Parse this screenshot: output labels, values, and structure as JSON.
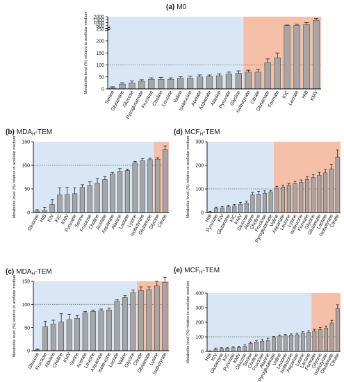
{
  "style": {
    "consumed_bg": "#d8e6f5",
    "secreted_bg": "#f6bfa7",
    "bar_fill": "#a6a6a6",
    "bar_stroke": "#333333",
    "error_color": "#222222",
    "reference_line": "#666666"
  },
  "chart_data": [
    {
      "id": "a",
      "type": "bar",
      "panel_label": "(a)",
      "title": "M0",
      "ylabel": "Metabolite level (%) relative to acellular medium",
      "yticks": [
        "0",
        "50",
        "100",
        "150",
        "200",
        "250",
        "500",
        "1000",
        "1500",
        "2000"
      ],
      "axis_break": {
        "lower_max": 250,
        "upper_min": 400
      },
      "ylim": [
        0,
        2000
      ],
      "grid": false,
      "reference_value": 100,
      "n_consumed": 14,
      "categories": [
        "Serine",
        "Glutamine",
        "Glucose",
        "Pyroglutamate",
        "Fructose",
        "Choline",
        "Leucine",
        "Valine",
        "Isoleucine",
        "Acetate",
        "Aspartate",
        "Alanine",
        "Pyruvate",
        "Glycine",
        "Isobutyrate",
        "Citrate",
        "Glutamate",
        "Formate",
        "KIC",
        "Lactate",
        "HIB",
        "KMV"
      ],
      "values": [
        5,
        20,
        25,
        32,
        40,
        40,
        40,
        45,
        45,
        50,
        52,
        55,
        62,
        65,
        70,
        70,
        110,
        130,
        500,
        560,
        700,
        1400
      ],
      "errors": [
        4,
        6,
        8,
        6,
        6,
        8,
        6,
        6,
        8,
        8,
        6,
        8,
        8,
        10,
        8,
        12,
        15,
        20,
        100,
        150,
        300,
        320
      ]
    },
    {
      "id": "b",
      "type": "bar",
      "panel_label": "(b)",
      "title": "MDA",
      "title_sub": "H",
      "title_suffix": "-TEM",
      "ylabel": "Metabolite level (%) relative to acellular medium",
      "yticks": [
        "0",
        "50",
        "100",
        "150"
      ],
      "ylim": [
        0,
        150
      ],
      "grid": false,
      "reference_value": 100,
      "n_consumed": 16,
      "categories": [
        "Glucose",
        "HIB",
        "KIV",
        "KIC",
        "KMV",
        "Pyruvate",
        "Serine",
        "Fructose",
        "Choline",
        "Acetate",
        "Aspartate",
        "Alanine",
        "Lactate",
        "Lysine",
        "Isobutyrate",
        "Glutamate",
        "Glycine",
        "Citrate"
      ],
      "values": [
        3,
        5,
        17,
        37,
        38,
        40,
        53,
        57,
        62,
        70,
        82,
        87,
        89,
        105,
        110,
        112,
        113,
        133
      ],
      "errors": [
        3,
        6,
        10,
        15,
        15,
        12,
        6,
        8,
        10,
        6,
        3,
        6,
        3,
        3,
        4,
        3,
        3,
        8
      ]
    },
    {
      "id": "d",
      "type": "bar",
      "panel_label": "(d)",
      "title": "MCF",
      "title_sub": "H",
      "title_suffix": "-TEM",
      "ylabel": "Metabolite level (%) relative to acellular medium",
      "yticks": [
        "0",
        "100",
        "200",
        "300"
      ],
      "ylim": [
        0,
        300
      ],
      "grid": false,
      "reference_value": 100,
      "n_consumed": 11,
      "categories": [
        "HIB",
        "Pyruvate",
        "KIV",
        "Glutamine",
        "KIC",
        "KMV",
        "Glucose",
        "Alanine",
        "Choline",
        "Fructose",
        "Pyroglutamate",
        "Valine",
        "Aspartate",
        "Leucine",
        "Lysine",
        "Isoleucine",
        "Formate",
        "Glycine",
        "Glutamate",
        "Lactate",
        "Isobutyrate",
        "Citrate"
      ],
      "values": [
        2,
        18,
        20,
        25,
        28,
        35,
        40,
        75,
        78,
        82,
        88,
        103,
        108,
        115,
        122,
        128,
        140,
        148,
        158,
        168,
        185,
        235
      ],
      "errors": [
        2,
        5,
        5,
        6,
        6,
        8,
        8,
        10,
        12,
        10,
        5,
        8,
        8,
        8,
        10,
        10,
        12,
        12,
        12,
        15,
        20,
        30
      ]
    },
    {
      "id": "c",
      "type": "bar",
      "panel_label": "(c)",
      "title": "MDA",
      "title_sub": "H",
      "title_suffix": "-TEM",
      "ylabel": "Metabolite level (%) relative to acellular medium",
      "yticks": [
        "0",
        "50",
        "100",
        "150"
      ],
      "ylim": [
        0,
        150
      ],
      "grid": false,
      "reference_value": 100,
      "n_consumed": 13,
      "categories": [
        "Glucose",
        "Fructose",
        "Alanine",
        "Choline",
        "KMV",
        "Serine",
        "Acetate",
        "Leucine",
        "Aspartate",
        "Isoleucine",
        "Lactate",
        "Valine",
        "Glycine",
        "Citrate",
        "Glutamate",
        "Lysine",
        "Isobutyrate"
      ],
      "values": [
        2,
        52,
        58,
        62,
        67,
        70,
        82,
        85,
        86,
        88,
        107,
        115,
        125,
        130,
        132,
        140,
        148
      ],
      "errors": [
        2,
        12,
        8,
        18,
        12,
        6,
        3,
        3,
        4,
        4,
        3,
        4,
        6,
        8,
        6,
        10,
        10
      ]
    },
    {
      "id": "e",
      "type": "bar",
      "panel_label": "(e)",
      "title": "MCF",
      "title_sub": "H",
      "title_suffix": "-TEM",
      "ylabel": "Metabolite level (%) relative to acellular medium",
      "yticks": [
        "0",
        "100",
        "200",
        "300",
        "400"
      ],
      "ylim": [
        0,
        400
      ],
      "grid": false,
      "reference_value": 100,
      "n_consumed": 18,
      "categories": [
        "HIB",
        "KIV",
        "Glutamine",
        "KIC",
        "Pyruvate",
        "KMV",
        "Glucose",
        "Serine",
        "Choline",
        "Fructose",
        "Alanine",
        "Pyroglutamate",
        "Valine",
        "Leucine",
        "Isoleucine",
        "Aspartate",
        "Lysine",
        "Lactate",
        "Formate",
        "Glycine",
        "Isobutyrate",
        "Glutamate",
        "Citrate"
      ],
      "values": [
        2,
        15,
        20,
        22,
        25,
        28,
        35,
        55,
        65,
        70,
        75,
        95,
        105,
        108,
        112,
        115,
        125,
        130,
        140,
        150,
        160,
        195,
        295
      ],
      "errors": [
        2,
        8,
        6,
        6,
        8,
        8,
        10,
        10,
        10,
        12,
        15,
        8,
        8,
        8,
        8,
        10,
        10,
        12,
        12,
        15,
        15,
        18,
        25
      ]
    }
  ]
}
